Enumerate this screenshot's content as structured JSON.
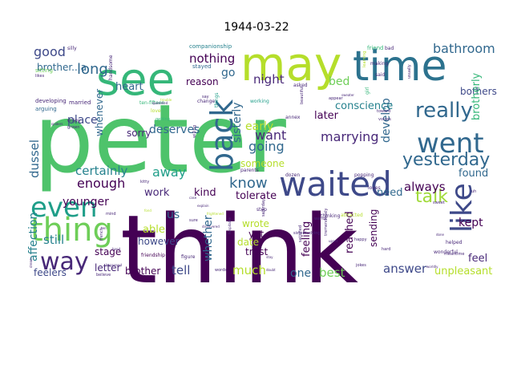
{
  "title": "1944-03-22",
  "palette": {
    "dark_purple": "#440154",
    "purple": "#482878",
    "slate_blue": "#3e4989",
    "blue": "#31688e",
    "teal": "#26828e",
    "cyan": "#1f9e89",
    "green": "#35b779",
    "light_green": "#6ece58",
    "yellow_green": "#b5de2b",
    "yellow": "#fde725"
  },
  "words": [
    {
      "text": "peter",
      "color": "#4ec36b"
    },
    {
      "text": "think",
      "color": "#440154"
    },
    {
      "text": "may",
      "color": "#b5de2b"
    },
    {
      "text": "time",
      "color": "#2c728e"
    },
    {
      "text": "see",
      "color": "#35b779"
    },
    {
      "text": "waited",
      "color": "#3e4989"
    },
    {
      "text": "went",
      "color": "#31688e"
    },
    {
      "text": "back",
      "color": "#31688e"
    },
    {
      "text": "thing",
      "color": "#6ece58"
    },
    {
      "text": "even",
      "color": "#1f9e89"
    },
    {
      "text": "way",
      "color": "#482878"
    },
    {
      "text": "like",
      "color": "#3e4989"
    },
    {
      "text": "really",
      "color": "#31688e"
    },
    {
      "text": "yesterday",
      "color": "#31688e"
    },
    {
      "text": "talk",
      "color": "#a0da39"
    },
    {
      "text": "know",
      "color": "#31688e"
    },
    {
      "text": "marrying",
      "color": "#482878"
    },
    {
      "text": "going",
      "color": "#31688e"
    },
    {
      "text": "want",
      "color": "#482878"
    },
    {
      "text": "night",
      "color": "#482878"
    },
    {
      "text": "early",
      "color": "#b5de2b"
    },
    {
      "text": "certainly",
      "color": "#26828e"
    },
    {
      "text": "away",
      "color": "#1f9e89"
    },
    {
      "text": "enough",
      "color": "#440154"
    },
    {
      "text": "long",
      "color": "#31688e"
    },
    {
      "text": "good",
      "color": "#3e4989"
    },
    {
      "text": "nothing",
      "color": "#440154"
    },
    {
      "text": "bathroom",
      "color": "#31688e"
    },
    {
      "text": "bed",
      "color": "#6ece58"
    },
    {
      "text": "go",
      "color": "#31688e"
    },
    {
      "text": "brother...a",
      "color": "#31688e"
    },
    {
      "text": "heart",
      "color": "#31688e"
    },
    {
      "text": "reason",
      "color": "#440154"
    },
    {
      "text": "place",
      "color": "#3e4989"
    },
    {
      "text": "deserves",
      "color": "#31688e"
    },
    {
      "text": "sisterly",
      "color": "#31688e"
    },
    {
      "text": "develop",
      "color": "#31688e"
    },
    {
      "text": "conscience",
      "color": "#26828e"
    },
    {
      "text": "later",
      "color": "#440154"
    },
    {
      "text": "bothers",
      "color": "#3e4989"
    },
    {
      "text": "brotherly",
      "color": "#35b779"
    },
    {
      "text": "whenever",
      "color": "#31688e"
    },
    {
      "text": "dussel",
      "color": "#31688e"
    },
    {
      "text": "sorry",
      "color": "#482878"
    },
    {
      "text": "someone",
      "color": "#b5de2b"
    },
    {
      "text": "always",
      "color": "#440154"
    },
    {
      "text": "found",
      "color": "#31688e"
    },
    {
      "text": "kept",
      "color": "#440154"
    },
    {
      "text": "need",
      "color": "#31688e"
    },
    {
      "text": "tolerate",
      "color": "#440154"
    },
    {
      "text": "kind",
      "color": "#440154"
    },
    {
      "text": "work",
      "color": "#482878"
    },
    {
      "text": "us",
      "color": "#31688e"
    },
    {
      "text": "younger",
      "color": "#440154"
    },
    {
      "text": "affection",
      "color": "#26828e"
    },
    {
      "text": "still",
      "color": "#26828e"
    },
    {
      "text": "whether",
      "color": "#31688e"
    },
    {
      "text": "wrote",
      "color": "#b5de2b"
    },
    {
      "text": "yet",
      "color": "#440154"
    },
    {
      "text": "date",
      "color": "#b5de2b"
    },
    {
      "text": "feeling",
      "color": "#440154"
    },
    {
      "text": "reached",
      "color": "#440154"
    },
    {
      "text": "sending",
      "color": "#440154"
    },
    {
      "text": "able",
      "color": "#b5de2b"
    },
    {
      "text": "however",
      "color": "#3e4989"
    },
    {
      "text": "stage",
      "color": "#440154"
    },
    {
      "text": "letter",
      "color": "#482878"
    },
    {
      "text": "brother",
      "color": "#440154"
    },
    {
      "text": "tell",
      "color": "#3e4989"
    },
    {
      "text": "trust",
      "color": "#440154"
    },
    {
      "text": "much",
      "color": "#b5de2b"
    },
    {
      "text": "one",
      "color": "#31688e"
    },
    {
      "text": "best",
      "color": "#6ece58"
    },
    {
      "text": "answer",
      "color": "#3e4989"
    },
    {
      "text": "unpleasant",
      "color": "#b5de2b"
    },
    {
      "text": "feel",
      "color": "#482878"
    },
    {
      "text": "feelers",
      "color": "#3e4989"
    },
    {
      "text": "companionship",
      "color": "#26828e"
    },
    {
      "text": "stayed",
      "color": "#31688e"
    },
    {
      "text": "ten-fifteen",
      "color": "#35b779"
    },
    {
      "text": "handsome",
      "color": "#482878"
    },
    {
      "text": "developing",
      "color": "#482878"
    },
    {
      "text": "married",
      "color": "#482878"
    },
    {
      "text": "sitting",
      "color": "#6ece58"
    },
    {
      "text": "arguing",
      "color": "#31688e"
    },
    {
      "text": "enjoy",
      "color": "#482878"
    },
    {
      "text": "friend",
      "color": "#35b779"
    },
    {
      "text": "making",
      "color": "#482878"
    },
    {
      "text": "said",
      "color": "#482878"
    },
    {
      "text": "annex",
      "color": "#482878"
    },
    {
      "text": "love",
      "color": "#b5de2b"
    },
    {
      "text": "change",
      "color": "#482878"
    },
    {
      "text": "asked",
      "color": "#482878"
    },
    {
      "text": "working",
      "color": "#1f9e89"
    },
    {
      "text": "parents",
      "color": "#482878"
    },
    {
      "text": "things",
      "color": "#1f9e89"
    },
    {
      "text": "dozen",
      "color": "#482878"
    },
    {
      "text": "popping",
      "color": "#482878"
    },
    {
      "text": "loves",
      "color": "#482878"
    },
    {
      "text": "wonderful",
      "color": "#482878"
    },
    {
      "text": "helped",
      "color": "#482878"
    },
    {
      "text": "thinking",
      "color": "#482878"
    },
    {
      "text": "attracted",
      "color": "#b5de2b"
    },
    {
      "text": "step",
      "color": "#482878"
    },
    {
      "text": "friendship",
      "color": "#440154"
    },
    {
      "text": "figure",
      "color": "#482878"
    },
    {
      "text": "believe",
      "color": "#482878"
    },
    {
      "text": "words",
      "color": "#482878"
    },
    {
      "text": "jokes",
      "color": "#482878"
    },
    {
      "text": "meantime",
      "color": "#482878"
    },
    {
      "text": "sweet",
      "color": "#482878"
    },
    {
      "text": "wants",
      "color": "#482878"
    },
    {
      "text": "saturday",
      "color": "#482878"
    },
    {
      "text": "kitty",
      "color": "#482878"
    },
    {
      "text": "mind",
      "color": "#482878"
    },
    {
      "text": "french",
      "color": "#482878"
    },
    {
      "text": "voices",
      "color": "#482878"
    },
    {
      "text": "toward",
      "color": "#482878"
    },
    {
      "text": "girl",
      "color": "#35b779"
    },
    {
      "text": "silly",
      "color": "#482878"
    },
    {
      "text": "likes",
      "color": "#482878"
    },
    {
      "text": "bad",
      "color": "#482878"
    },
    {
      "text": "usually",
      "color": "#482878"
    },
    {
      "text": "grown",
      "color": "#482878"
    },
    {
      "text": "learning",
      "color": "#b5de2b"
    },
    {
      "text": "beautiful",
      "color": "#482878"
    },
    {
      "text": "say",
      "color": "#482878"
    },
    {
      "text": "sure",
      "color": "#482878"
    },
    {
      "text": "appear",
      "color": "#482878"
    },
    {
      "text": "getting",
      "color": "#35b779"
    },
    {
      "text": "willing",
      "color": "#482878"
    },
    {
      "text": "studying",
      "color": "#482878"
    },
    {
      "text": "sister",
      "color": "#482878"
    },
    {
      "text": "satisfied",
      "color": "#482878"
    },
    {
      "text": "tremendously",
      "color": "#482878"
    },
    {
      "text": "happy",
      "color": "#482878"
    },
    {
      "text": "hard",
      "color": "#482878"
    },
    {
      "text": "done",
      "color": "#482878"
    },
    {
      "text": "worldly",
      "color": "#482878"
    },
    {
      "text": "dream",
      "color": "#482878"
    },
    {
      "text": "happened",
      "color": "#482878"
    },
    {
      "text": "quarreled",
      "color": "#482878"
    },
    {
      "text": "discovered",
      "color": "#482878"
    },
    {
      "text": "hospitable",
      "color": "#482878"
    },
    {
      "text": "hand",
      "color": "#482878"
    },
    {
      "text": "case",
      "color": "#482878"
    },
    {
      "text": "explain",
      "color": "#482878"
    },
    {
      "text": "stay",
      "color": "#482878"
    },
    {
      "text": "doubt",
      "color": "#482878"
    },
    {
      "text": "sweater",
      "color": "#482878"
    },
    {
      "text": "trouble",
      "color": "#b5de2b"
    },
    {
      "text": "fond",
      "color": "#b5de2b"
    },
    {
      "text": "frightened",
      "color": "#b5de2b"
    },
    {
      "text": "ten",
      "color": "#482878"
    },
    {
      "text": "uh",
      "color": "#482878"
    },
    {
      "text": "spiders",
      "color": "#482878"
    },
    {
      "text": "upset",
      "color": "#482878"
    }
  ]
}
